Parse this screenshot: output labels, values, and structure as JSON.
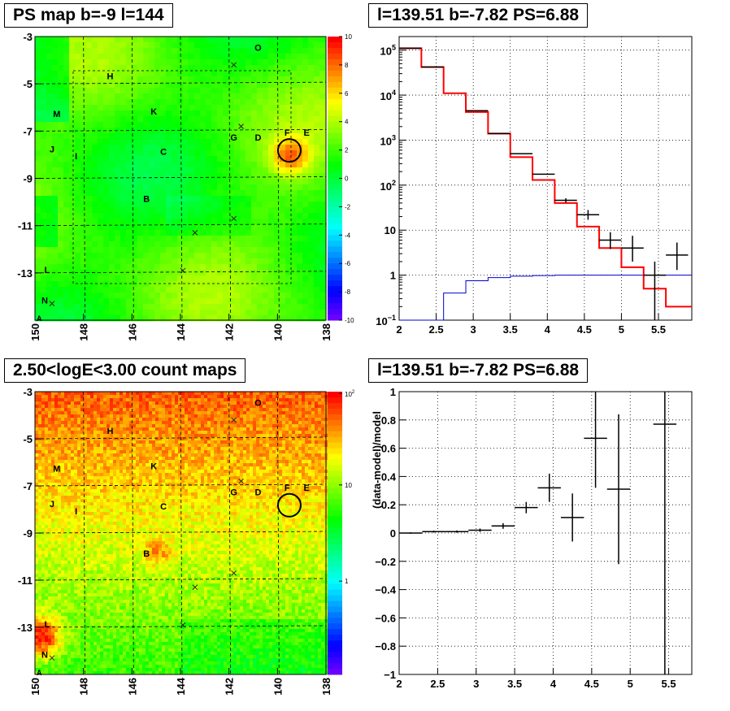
{
  "titles": {
    "tl": "PS map b=-9 l=144",
    "tr": "l=139.51 b=-7.82 PS=6.88",
    "bl": "2.50<logE<3.00 count maps",
    "br": "l=139.51 b=-7.82 PS=6.88"
  },
  "colors": {
    "data": "#000000",
    "model_total": "#ff0000",
    "model_bg": "#0000cc",
    "grid": "#000000"
  },
  "chart_data": [
    {
      "type": "heatmap",
      "name": "ps-map",
      "title": "PS map b=-9 l=144",
      "x_ticks": [
        "150",
        "148",
        "146",
        "144",
        "142",
        "140",
        "138"
      ],
      "y_ticks": [
        "-3",
        "-5",
        "-7",
        "-9",
        "-11",
        "-13"
      ],
      "xlim": [
        150,
        138
      ],
      "ylim": [
        -3,
        -15
      ],
      "colorbar": {
        "min": -10,
        "max": 10,
        "ticks": [
          "10",
          "8",
          "6",
          "4",
          "2",
          "0",
          "-2",
          "-4",
          "-6",
          "-8",
          "-10"
        ]
      },
      "labels": [
        {
          "t": "O",
          "l": 140.8,
          "b": -3.6
        },
        {
          "t": "H",
          "l": 146.9,
          "b": -4.8
        },
        {
          "t": "K",
          "l": 145.1,
          "b": -6.3
        },
        {
          "t": "M",
          "l": 149.1,
          "b": -6.4
        },
        {
          "t": "G",
          "l": 141.8,
          "b": -7.4
        },
        {
          "t": "D",
          "l": 140.8,
          "b": -7.4
        },
        {
          "t": "F",
          "l": 139.6,
          "b": -7.2
        },
        {
          "t": "E",
          "l": 138.8,
          "b": -7.2
        },
        {
          "t": "J",
          "l": 149.3,
          "b": -7.9
        },
        {
          "t": "I",
          "l": 148.3,
          "b": -8.2
        },
        {
          "t": "C",
          "l": 144.7,
          "b": -8.0
        },
        {
          "t": "B",
          "l": 145.4,
          "b": -10.0
        },
        {
          "t": "L",
          "l": 149.5,
          "b": -13.0
        },
        {
          "t": "N",
          "l": 149.6,
          "b": -14.3
        }
      ],
      "crosses": [
        [
          141.8,
          -4.2
        ],
        [
          141.5,
          -6.8
        ],
        [
          141.8,
          -10.7
        ],
        [
          143.4,
          -11.3
        ],
        [
          143.9,
          -12.9
        ],
        [
          149.3,
          -14.3
        ]
      ],
      "circle": {
        "l": 139.51,
        "b": -7.82,
        "r": 0.6
      }
    },
    {
      "type": "line",
      "name": "spectrum",
      "title": "l=139.51 b=-7.82 PS=6.88",
      "xlim": [
        2,
        5.95
      ],
      "ylim": [
        0.1,
        200000
      ],
      "yscale": "log",
      "x_ticks": [
        2,
        2.5,
        3,
        3.5,
        4,
        4.5,
        5,
        5.5
      ],
      "y_ticks": [
        {
          "v": 0.1,
          "base": "10",
          "exp": "−1"
        },
        {
          "v": 1,
          "label": "1"
        },
        {
          "v": 10,
          "label": "10"
        },
        {
          "v": 100,
          "base": "10",
          "exp": "2"
        },
        {
          "v": 1000,
          "base": "10",
          "exp": "3"
        },
        {
          "v": 10000,
          "base": "10",
          "exp": "4"
        },
        {
          "v": 100000,
          "base": "10",
          "exp": "5"
        }
      ],
      "data": [
        {
          "x": 2.15,
          "y": 110000,
          "yerr_lo": 0,
          "yerr_hi": 0
        },
        {
          "x": 2.45,
          "y": 42000,
          "yerr_lo": 0,
          "yerr_hi": 0
        },
        {
          "x": 3.05,
          "y": 4500,
          "yerr_lo": 0,
          "yerr_hi": 0
        },
        {
          "x": 3.35,
          "y": 1400,
          "yerr_lo": 0,
          "yerr_hi": 0
        },
        {
          "x": 3.65,
          "y": 500,
          "yerr_lo": 0,
          "yerr_hi": 0
        },
        {
          "x": 3.95,
          "y": 175,
          "yerr_lo": 0,
          "yerr_hi": 0
        },
        {
          "x": 4.25,
          "y": 46,
          "yerr_lo": 5,
          "yerr_hi": 5
        },
        {
          "x": 4.55,
          "y": 22,
          "yerr_lo": 5,
          "yerr_hi": 6
        },
        {
          "x": 4.85,
          "y": 6,
          "yerr_lo": 2.2,
          "yerr_hi": 3
        },
        {
          "x": 5.15,
          "y": 4,
          "yerr_lo": 2,
          "yerr_hi": 3.5
        },
        {
          "x": 5.45,
          "y": 1,
          "yerr_lo": 0.9,
          "yerr_hi": 1
        },
        {
          "x": 5.75,
          "y": 2.8,
          "yerr_lo": 1.5,
          "yerr_hi": 2.5
        }
      ],
      "bin_halfwidth": 0.15,
      "model_total": {
        "edges": [
          2,
          2.3,
          2.6,
          2.9,
          3.2,
          3.5,
          3.8,
          4.1,
          4.4,
          4.7,
          5,
          5.3,
          5.6,
          5.95
        ],
        "values": [
          110000,
          42000,
          11000,
          4200,
          1400,
          420,
          130,
          40,
          12,
          4,
          1.5,
          0.5,
          0.2
        ]
      },
      "model_bg": {
        "edges": [
          2,
          2.3,
          2.6,
          2.9,
          3.2,
          3.5,
          3.8,
          4.1,
          4.4,
          4.7,
          5,
          5.3,
          5.6,
          5.95
        ],
        "values": [
          0.1,
          0.1,
          0.4,
          0.75,
          0.88,
          0.95,
          0.98,
          1.0,
          1.0,
          1.0,
          1.0,
          1.0,
          1.0
        ]
      }
    },
    {
      "type": "heatmap",
      "name": "count-map",
      "title": "2.50<logE<3.00 count maps",
      "x_ticks": [
        "150",
        "148",
        "146",
        "144",
        "142",
        "140",
        "138"
      ],
      "y_ticks": [
        "-3",
        "-5",
        "-7",
        "-9",
        "-11",
        "-13"
      ],
      "xlim": [
        150,
        138
      ],
      "ylim": [
        -3,
        -15
      ],
      "colorbar": {
        "scale": "log",
        "ticks": [
          {
            "base": "10",
            "exp": "2"
          },
          {
            "label": "10"
          },
          {
            "label": "1"
          }
        ]
      }
    },
    {
      "type": "scatter",
      "name": "residuals",
      "title": "l=139.51 b=-7.82 PS=6.88",
      "ylabel": "(data-model)/model",
      "xlim": [
        2,
        5.8
      ],
      "ylim": [
        -1,
        1
      ],
      "x_ticks": [
        2,
        2.5,
        3,
        3.5,
        4,
        4.5,
        5,
        5.5
      ],
      "y_ticks": [
        1,
        0.8,
        0.6,
        0.4,
        0.2,
        0,
        -0.2,
        -0.4,
        -0.6,
        -0.8,
        -1
      ],
      "y_tick_labels": [
        "1",
        "0.8",
        "0.6",
        "0.4",
        "0.2",
        "0",
        "−0.2",
        "−0.4",
        "−0.6",
        "−0.8",
        "−1"
      ],
      "bin_halfwidth": 0.15,
      "points": [
        {
          "x": 2.15,
          "y": 0.0,
          "err": 0.005
        },
        {
          "x": 2.45,
          "y": 0.01,
          "err": 0.007
        },
        {
          "x": 2.75,
          "y": 0.01,
          "err": 0.008
        },
        {
          "x": 3.05,
          "y": 0.02,
          "err": 0.012
        },
        {
          "x": 3.35,
          "y": 0.05,
          "err": 0.02
        },
        {
          "x": 3.65,
          "y": 0.18,
          "err": 0.04
        },
        {
          "x": 3.95,
          "y": 0.32,
          "err": 0.1
        },
        {
          "x": 4.25,
          "y": 0.11,
          "err": 0.17
        },
        {
          "x": 4.55,
          "y": 0.67,
          "err": 0.35
        },
        {
          "x": 4.85,
          "y": 0.31,
          "err": 0.53
        },
        {
          "x": 5.45,
          "y": 0.77,
          "err": 1.8
        }
      ]
    }
  ]
}
